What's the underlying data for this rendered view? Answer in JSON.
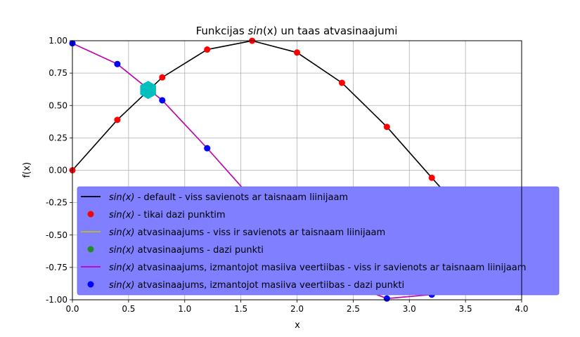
{
  "chart_data": {
    "type": "line",
    "title_prefix": "Funkcijas ",
    "title_math": "sin",
    "title_arg": "(x)",
    "title_suffix": " un taas atvasinaajumi",
    "xlabel": "x",
    "ylabel": "f(x)",
    "xlim": [
      0.0,
      4.0
    ],
    "ylim": [
      -1.0,
      1.0
    ],
    "xticks": [
      "0.0",
      "0.5",
      "1.0",
      "1.5",
      "2.0",
      "2.5",
      "3.0",
      "3.5",
      "4.0"
    ],
    "yticks": [
      "-1.00",
      "-0.75",
      "-0.50",
      "-0.25",
      "0.00",
      "0.25",
      "0.50",
      "0.75",
      "1.00"
    ],
    "grid": true,
    "legend_placement": "lower-right",
    "legend_bg": "#7f7fff",
    "x": [
      0.0,
      0.4,
      0.8,
      1.2,
      1.6,
      2.0,
      2.4,
      2.8,
      3.2,
      3.6,
      4.0
    ],
    "series": [
      {
        "key": "sin_line",
        "style": "line",
        "color": "#000000",
        "label_math": "sin(x)",
        "label_rest": " - default - viss savienots ar taisnaam liinijaam",
        "y": [
          0.0,
          0.389,
          0.717,
          0.932,
          0.9996,
          0.909,
          0.675,
          0.335,
          -0.058,
          -0.443,
          -0.757
        ]
      },
      {
        "key": "sin_points",
        "style": "points",
        "color": "#ff0000",
        "label_math": "sin(x)",
        "label_rest": " - tikai dazi punktim",
        "y": [
          0.0,
          0.389,
          0.717,
          0.932,
          0.9996,
          0.909,
          0.675,
          0.335,
          -0.058,
          -0.443,
          -0.757
        ]
      },
      {
        "key": "deriv_line",
        "style": "line",
        "color": "#bcbd22",
        "label_math": "sin(x)",
        "label_rest": " atvasinaajums - viss ir savienots ar taisnaam liinijaam",
        "y": [
          0.98,
          0.82,
          0.54,
          0.17,
          -0.22,
          -0.58,
          -0.86,
          -0.99,
          -0.96,
          -0.78,
          -0.48
        ]
      },
      {
        "key": "deriv_points",
        "style": "points",
        "color": "#228b22",
        "label_math": "sin(x)",
        "label_rest": " atvasinaajums - dazi punkti",
        "y": [
          0.98,
          0.82,
          0.54,
          0.17,
          -0.22,
          -0.58,
          -0.86,
          -0.99,
          -0.96,
          -0.78,
          -0.48
        ]
      },
      {
        "key": "array_line",
        "style": "line",
        "color": "#bf00bf",
        "label_math": "sin(x)",
        "label_rest": " atvasinaajums, izmantojot masiiva veertiibas - viss ir savienots ar taisnaam liinijaam",
        "y": [
          0.98,
          0.82,
          0.54,
          0.17,
          -0.22,
          -0.58,
          -0.86,
          -0.99,
          -0.96,
          -0.78,
          -0.48
        ]
      },
      {
        "key": "array_points",
        "style": "points",
        "color": "#0000ff",
        "label_math": "sin(x)",
        "label_rest": " atvasinaajums, izmantojot masiiva veertiibas - dazi punkti",
        "y": [
          0.98,
          0.82,
          0.54,
          0.17,
          -0.22,
          -0.58,
          -0.86,
          -0.99,
          -0.96,
          -0.78,
          -0.48
        ]
      }
    ],
    "intersection_marker": {
      "x": 0.674,
      "y": 0.62,
      "color": "#00bfbf",
      "shape": "hexagon"
    }
  }
}
